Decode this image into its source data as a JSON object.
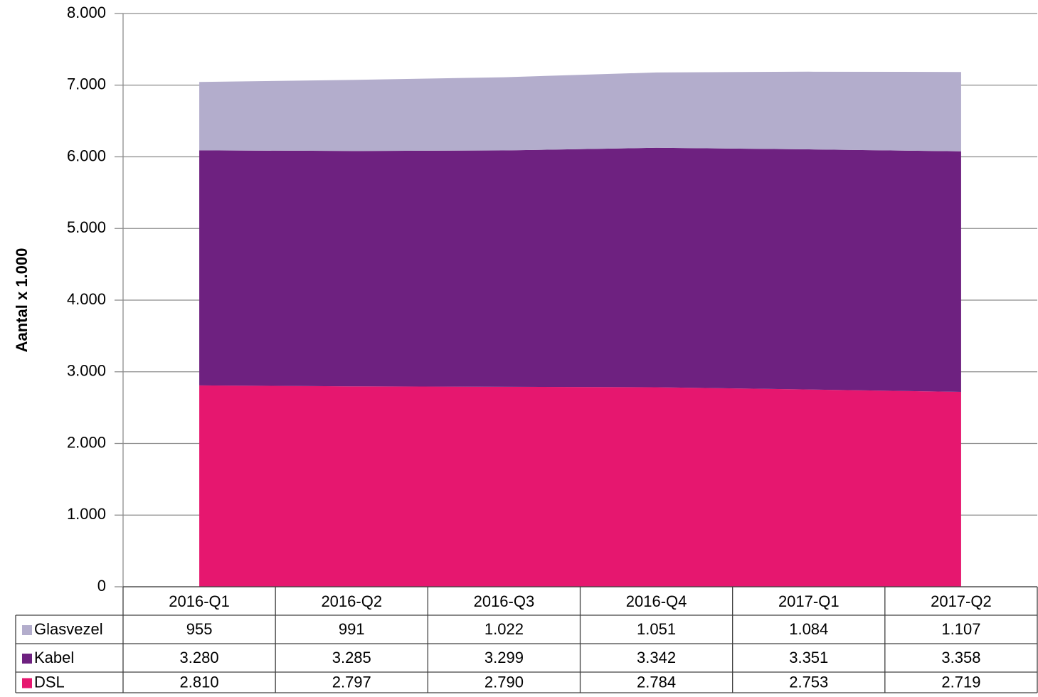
{
  "chart_data": {
    "type": "area",
    "stacked": true,
    "y_label": "Aantal x 1.000",
    "categories": [
      "2016-Q1",
      "2016-Q2",
      "2016-Q3",
      "2016-Q4",
      "2017-Q1",
      "2017-Q2"
    ],
    "series": [
      {
        "name": "Glasvezel",
        "color": "#b3adcc",
        "values": [
          955,
          991,
          1022,
          1051,
          1084,
          1107
        ],
        "value_labels": [
          "955",
          "991",
          "1.022",
          "1.051",
          "1.084",
          "1.107"
        ]
      },
      {
        "name": "Kabel",
        "color": "#6e2180",
        "values": [
          3280,
          3285,
          3299,
          3342,
          3351,
          3358
        ],
        "value_labels": [
          "3.280",
          "3.285",
          "3.299",
          "3.342",
          "3.351",
          "3.358"
        ]
      },
      {
        "name": "DSL",
        "color": "#e6176f",
        "values": [
          2810,
          2797,
          2790,
          2784,
          2753,
          2719
        ],
        "value_labels": [
          "2.810",
          "2.797",
          "2.790",
          "2.784",
          "2.753",
          "2.719"
        ]
      }
    ],
    "ylim": [
      0,
      8000
    ],
    "yticks": [
      0,
      {
        "value": 1000,
        "label": "1.000"
      },
      {
        "value": 2000,
        "label": "2.000"
      },
      {
        "value": 3000,
        "label": "3.000"
      },
      {
        "value": 4000,
        "label": "4.000"
      },
      {
        "value": 5000,
        "label": "5.000"
      },
      {
        "value": 6000,
        "label": "6.000"
      },
      {
        "value": 7000,
        "label": "7.000"
      },
      {
        "value": 8000,
        "label": "8.000"
      }
    ],
    "grid": true
  }
}
